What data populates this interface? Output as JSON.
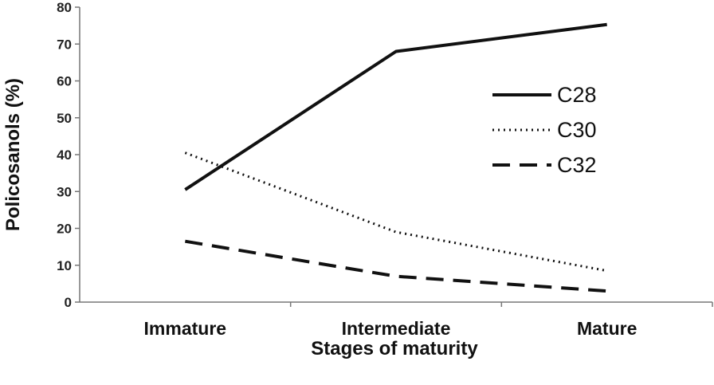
{
  "chart_data": {
    "type": "line",
    "categories": [
      "Immature",
      "Intermediate",
      "Mature"
    ],
    "series": [
      {
        "name": "C28",
        "values": [
          30.5,
          68,
          75.3
        ],
        "style": "solid"
      },
      {
        "name": "C30",
        "values": [
          40.5,
          19,
          8.5
        ],
        "style": "dotted"
      },
      {
        "name": "C32",
        "values": [
          16.5,
          7,
          3
        ],
        "style": "dashed"
      }
    ],
    "xlabel": "Stages of maturity",
    "ylabel": "Policosanols (%)",
    "ylim": [
      0,
      80
    ],
    "yticks": [
      "0",
      "10",
      "20",
      "30",
      "40",
      "50",
      "60",
      "70",
      "80"
    ],
    "grid": false,
    "legend": "right"
  }
}
